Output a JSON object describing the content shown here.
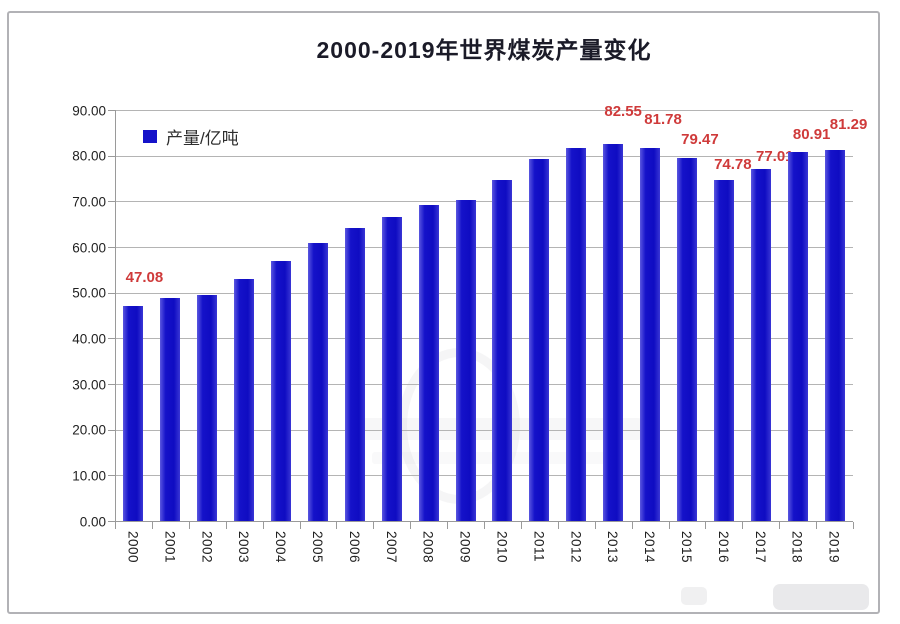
{
  "title": "2000-2019年世界煤炭产量变化",
  "legend": {
    "label": "产量/亿吨"
  },
  "colors": {
    "bar": "#1512c9",
    "data_label": "#cf3a3a",
    "gridline": "#b4b4b4",
    "axis": "#9a9a9a",
    "title_text": "#1b1b28",
    "frame_border": "#b2b2b6"
  },
  "chart_data": {
    "type": "bar",
    "title": "2000-2019年世界煤炭产量变化",
    "series_name": "产量/亿吨",
    "categories": [
      "2000",
      "2001",
      "2002",
      "2003",
      "2004",
      "2005",
      "2006",
      "2007",
      "2008",
      "2009",
      "2010",
      "2011",
      "2012",
      "2013",
      "2014",
      "2015",
      "2016",
      "2017",
      "2018",
      "2019"
    ],
    "values": [
      47.08,
      48.9,
      49.4,
      52.9,
      57.0,
      60.9,
      64.2,
      66.6,
      69.1,
      70.4,
      74.6,
      79.3,
      81.7,
      82.55,
      81.78,
      79.47,
      74.78,
      77.01,
      80.91,
      81.29
    ],
    "data_labels": [
      "47.08",
      null,
      null,
      null,
      null,
      null,
      null,
      null,
      null,
      null,
      null,
      null,
      null,
      "82.55",
      "81.78",
      "79.47",
      "74.78",
      "77.01",
      "80.91",
      "81.29"
    ],
    "xlabel": "",
    "ylabel": "",
    "ylim": [
      0,
      90
    ],
    "ytick_values": [
      0,
      10,
      20,
      30,
      40,
      50,
      60,
      70,
      80,
      90
    ],
    "ytick_labels": [
      "0.00",
      "10.00",
      "20.00",
      "30.00",
      "40.00",
      "50.00",
      "60.00",
      "70.00",
      "80.00",
      "90.00"
    ],
    "grid": true,
    "legend_position": "top-left-inside",
    "bar_color": "#1512c9",
    "label_color": "#cf3a3a"
  }
}
